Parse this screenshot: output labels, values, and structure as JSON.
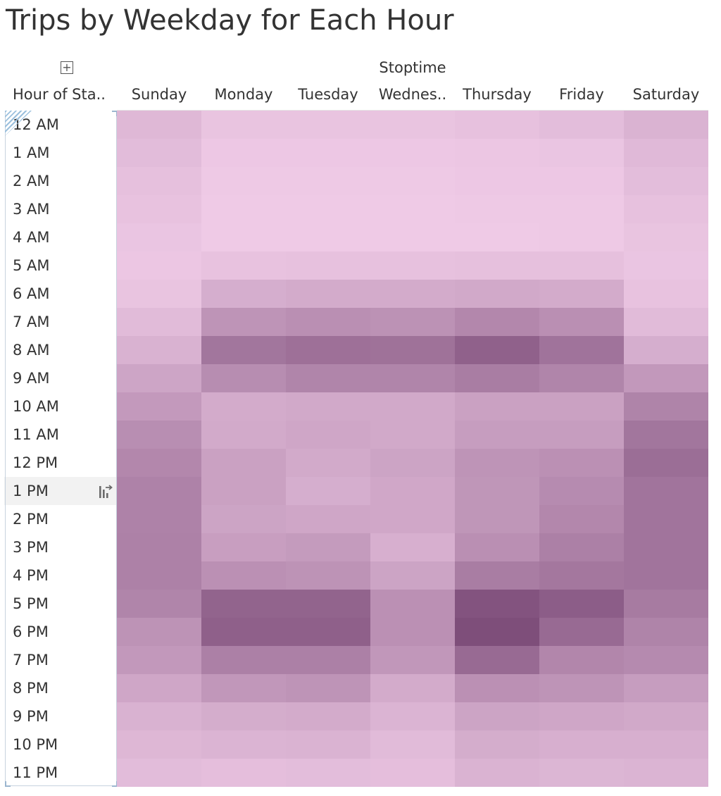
{
  "title": "Trips by Weekday for Each Hour",
  "expand_icon": "plus-box-icon",
  "column_group_header": "Stoptime",
  "row_field_header": "Hour of Sta..",
  "highlighted_row": "1 PM",
  "sort_icon": "sort-descending-icon",
  "colors": {
    "low": "#efcae6",
    "high": "#7b4a77"
  },
  "chart_data": {
    "type": "heatmap",
    "title": "Trips by Weekday for Each Hour",
    "x_header": "Stoptime",
    "y_header": "Hour of Sta..",
    "x": [
      "Sunday",
      "Monday",
      "Tuesday",
      "Wednes..",
      "Thursday",
      "Friday",
      "Saturday"
    ],
    "y": [
      "12 AM",
      "1 AM",
      "2 AM",
      "3 AM",
      "4 AM",
      "5 AM",
      "6 AM",
      "7 AM",
      "8 AM",
      "9 AM",
      "10 AM",
      "11 AM",
      "12 PM",
      "1 PM",
      "2 PM",
      "3 PM",
      "4 PM",
      "5 PM",
      "6 PM",
      "7 PM",
      "8 PM",
      "9 PM",
      "10 PM",
      "11 PM"
    ],
    "value_scale": "relative trip intensity (0-100)",
    "values": [
      [
        14,
        5,
        5,
        5,
        7,
        10,
        18
      ],
      [
        11,
        2,
        2,
        2,
        3,
        4,
        13
      ],
      [
        8,
        1,
        1,
        1,
        2,
        2,
        10
      ],
      [
        6,
        0,
        0,
        0,
        1,
        1,
        7
      ],
      [
        4,
        0,
        0,
        0,
        0,
        1,
        5
      ],
      [
        3,
        6,
        7,
        7,
        8,
        8,
        4
      ],
      [
        5,
        22,
        24,
        24,
        26,
        24,
        6
      ],
      [
        12,
        42,
        46,
        44,
        52,
        46,
        12
      ],
      [
        19,
        66,
        70,
        69,
        82,
        68,
        22
      ],
      [
        29,
        48,
        54,
        54,
        60,
        54,
        39
      ],
      [
        38,
        24,
        26,
        26,
        32,
        32,
        55
      ],
      [
        47,
        25,
        28,
        26,
        35,
        35,
        66
      ],
      [
        52,
        32,
        25,
        30,
        42,
        45,
        72
      ],
      [
        56,
        32,
        22,
        27,
        41,
        49,
        67
      ],
      [
        56,
        30,
        28,
        27,
        41,
        52,
        67
      ],
      [
        57,
        34,
        37,
        21,
        46,
        58,
        67
      ],
      [
        57,
        45,
        43,
        30,
        60,
        65,
        67
      ],
      [
        54,
        80,
        80,
        45,
        93,
        85,
        62
      ],
      [
        43,
        83,
        83,
        45,
        97,
        75,
        55
      ],
      [
        39,
        58,
        58,
        40,
        75,
        53,
        50
      ],
      [
        28,
        40,
        42,
        24,
        45,
        42,
        35
      ],
      [
        19,
        23,
        24,
        17,
        30,
        28,
        26
      ],
      [
        15,
        17,
        18,
        12,
        23,
        21,
        21
      ],
      [
        11,
        9,
        10,
        9,
        18,
        16,
        17
      ]
    ]
  }
}
